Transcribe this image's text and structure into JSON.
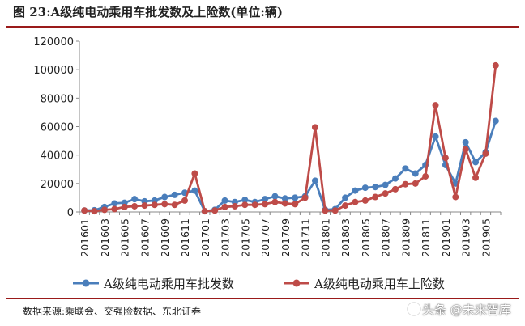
{
  "title": "图  23:A级纯电动乘用车批发数及上险数(单位:辆)",
  "source": "数据来源:乘联会、交强险数据、东北证券",
  "watermark": "头条 @未来智库",
  "colors": {
    "wholesale": "#4a7ebb",
    "insured": "#be4b48",
    "frame": "#9a1a1a"
  },
  "chart_data": {
    "type": "line",
    "ylim": [
      0,
      120000
    ],
    "yticks": [
      0,
      20000,
      40000,
      60000,
      80000,
      100000,
      120000
    ],
    "x": [
      "201601",
      "201602",
      "201603",
      "201604",
      "201605",
      "201606",
      "201607",
      "201608",
      "201609",
      "201610",
      "201611",
      "201612",
      "201701",
      "201702",
      "201703",
      "201704",
      "201705",
      "201706",
      "201707",
      "201708",
      "201709",
      "201710",
      "201711",
      "201712",
      "201801",
      "201802",
      "201803",
      "201804",
      "201805",
      "201806",
      "201807",
      "201808",
      "201809",
      "201810",
      "201811",
      "201812",
      "201901",
      "201902",
      "201903",
      "201904",
      "201905",
      "201906"
    ],
    "xtick_labels": [
      "201601",
      "201603",
      "201605",
      "201607",
      "201609",
      "201611",
      "201701",
      "201703",
      "201705",
      "201707",
      "201709",
      "201711",
      "201801",
      "201803",
      "201805",
      "201807",
      "201809",
      "201811",
      "201901",
      "201903",
      "201905"
    ],
    "legend_position": "bottom",
    "series": [
      {
        "name": "A级纯电动乘用车批发数",
        "color": "#4a7ebb",
        "values": [
          1000,
          1200,
          3500,
          6000,
          6500,
          9000,
          7500,
          8000,
          10500,
          12000,
          13500,
          15000,
          500,
          1500,
          8000,
          7000,
          8500,
          7000,
          9000,
          11000,
          9500,
          10000,
          11000,
          22000,
          1500,
          2000,
          10000,
          15000,
          17000,
          17500,
          19000,
          23500,
          30500,
          27000,
          33000,
          53000,
          33000,
          20000,
          49000,
          35000,
          42000,
          64000
        ]
      },
      {
        "name": "A级纯电动乘用车上险数",
        "color": "#be4b48",
        "values": [
          1000,
          500,
          1500,
          2000,
          3500,
          4000,
          4500,
          5000,
          5500,
          5000,
          8000,
          27000,
          500,
          1000,
          3500,
          4000,
          5000,
          5000,
          5500,
          7000,
          6000,
          5500,
          10000,
          59500,
          1000,
          1000,
          4500,
          7000,
          8000,
          10500,
          13000,
          16000,
          19500,
          20000,
          25000,
          75000,
          38000,
          10500,
          44000,
          24000,
          41000,
          103000
        ]
      }
    ]
  }
}
